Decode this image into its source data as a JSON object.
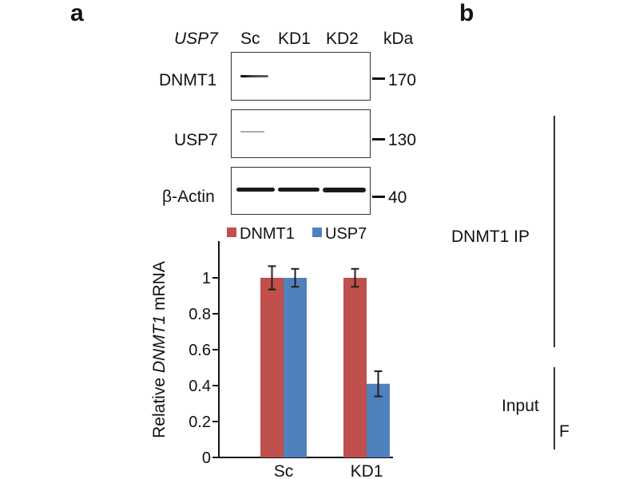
{
  "panels": {
    "a": {
      "letter": "a",
      "blot": {
        "gene_label": "USP7",
        "lanes": [
          "Sc",
          "KD1",
          "KD2"
        ],
        "kda_header": "kDa",
        "rows": [
          {
            "protein": "DNMT1",
            "marker": "170",
            "bands": [
              0.9,
              0,
              0
            ]
          },
          {
            "protein": "USP7",
            "marker": "130",
            "bands": [
              0.3,
              0,
              0
            ]
          },
          {
            "protein": "β-Actin",
            "marker": "40",
            "bands": [
              1,
              1,
              1
            ]
          }
        ]
      }
    },
    "b": {
      "letter": "b",
      "labels": [
        "DNMT1 IP",
        "Input"
      ],
      "partial_label": "F"
    }
  },
  "colors": {
    "dnmt1": "#c0504d",
    "usp7": "#4f81bd",
    "errorbar": "#2a1a1a"
  },
  "chart_data": {
    "type": "bar",
    "title": "",
    "xlabel": "",
    "ylabel_parts": [
      "Relative ",
      "DNMT1",
      " mRNA"
    ],
    "categories": [
      "Sc",
      "KD1"
    ],
    "series": [
      {
        "name": "DNMT1",
        "values": [
          1.0,
          1.0
        ],
        "errors": [
          0.065,
          0.05
        ]
      },
      {
        "name": "USP7",
        "values": [
          1.0,
          0.41
        ],
        "errors": [
          0.05,
          0.07
        ]
      }
    ],
    "ylim": [
      0,
      1.2
    ],
    "yticks": [
      0,
      0.2,
      0.4,
      0.6,
      0.8,
      1
    ],
    "ytick_labels": [
      "0",
      "0.2",
      "0.4",
      "0.6",
      "0.8",
      "1"
    ],
    "legend": {
      "position": "top",
      "entries": [
        "DNMT1",
        "USP7"
      ]
    },
    "grid": false
  }
}
